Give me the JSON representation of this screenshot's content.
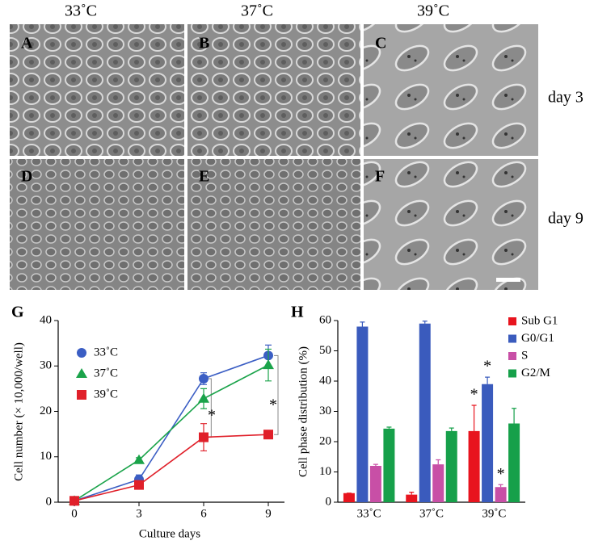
{
  "micrographs": {
    "columns": [
      "33˚C",
      "37˚C",
      "39˚C"
    ],
    "rows": [
      "day 3",
      "day 9"
    ],
    "panels": [
      "A",
      "B",
      "C",
      "D",
      "E",
      "F"
    ]
  },
  "chart_data": [
    {
      "type": "line",
      "title": "G",
      "xlabel": "Culture days",
      "ylabel": "Cell number (× 10,000/well)",
      "x": [
        0,
        3,
        6,
        9
      ],
      "xlim": [
        -0.75,
        9.75
      ],
      "xticks": [
        0,
        3,
        6,
        9
      ],
      "ylim": [
        0,
        40
      ],
      "yticks": [
        0,
        10,
        20,
        30,
        40
      ],
      "series": [
        {
          "name": "33˚C",
          "color": "#3b5ec4",
          "marker": "circle",
          "values": [
            0.3,
            5,
            27.2,
            32.3
          ],
          "errors": [
            0.2,
            1,
            1.3,
            2.3
          ]
        },
        {
          "name": "37˚C",
          "color": "#1aa34a",
          "marker": "triangle",
          "values": [
            0.3,
            9.3,
            22.8,
            30.2
          ],
          "errors": [
            0.2,
            0.5,
            2.2,
            3.5
          ]
        },
        {
          "name": "39˚C",
          "color": "#e0202a",
          "marker": "square",
          "values": [
            0.3,
            3.8,
            14.3,
            14.9
          ],
          "errors": [
            0.2,
            0.4,
            3,
            0.5
          ]
        }
      ],
      "annotations": [
        {
          "text": "*",
          "color": "#e0202a"
        },
        {
          "text": "*",
          "color": "#e0202a"
        }
      ]
    },
    {
      "type": "bar",
      "title": "H",
      "ylabel": "Cell phase distribution (%)",
      "categories": [
        "33˚C",
        "37˚C",
        "39˚C"
      ],
      "ylim": [
        0,
        60
      ],
      "yticks": [
        0,
        10,
        20,
        30,
        40,
        50,
        60
      ],
      "series": [
        {
          "name": "Sub G1",
          "color": "#e8141e",
          "values": [
            3,
            2.5,
            23.5
          ],
          "errors": [
            0,
            0.8,
            8.5
          ]
        },
        {
          "name": "G0/G1",
          "color": "#3a5bbd",
          "values": [
            58,
            59,
            39
          ],
          "errors": [
            1.5,
            0.8,
            2.3
          ]
        },
        {
          "name": "S",
          "color": "#c84fa6",
          "values": [
            12,
            12.5,
            5
          ],
          "errors": [
            0.5,
            1.5,
            0.8
          ]
        },
        {
          "name": "G2/M",
          "color": "#16a04a",
          "values": [
            24.3,
            23.5,
            26
          ],
          "errors": [
            0.5,
            1,
            5
          ]
        }
      ],
      "annotations": [
        {
          "text": "*",
          "color": "#e8141e"
        },
        {
          "text": "*",
          "color": "#3a5bbd"
        },
        {
          "text": "*",
          "color": "#c84fa6"
        }
      ]
    }
  ]
}
